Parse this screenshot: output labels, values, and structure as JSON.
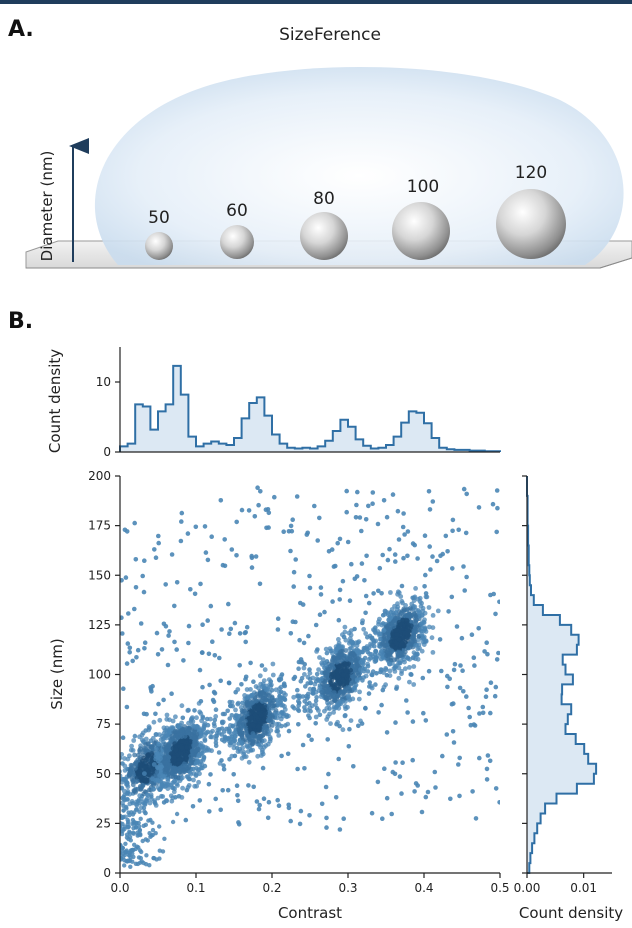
{
  "colors": {
    "header_bar": "#1f3d5c",
    "point": "#4a86b5",
    "density_dark": "#1d4e78",
    "hist_line": "#2f6fa5",
    "hist_fill": "#dce8f3",
    "droplet": "#dfeaf6",
    "arrow": "#1f3d5c"
  },
  "panel_a": {
    "letter": "A.",
    "title": "SizeFerence",
    "arrow_label": "Diameter (nm)",
    "sphere_labels": [
      "50",
      "60",
      "80",
      "100",
      "120"
    ]
  },
  "panel_b": {
    "letter": "B."
  },
  "chart_data": [
    {
      "type": "histogram",
      "ylabel": "Count density",
      "xlim": [
        0,
        0.5
      ],
      "ylim": [
        0,
        15
      ],
      "yticks": [
        0,
        10
      ],
      "bin_width": 0.01,
      "bins_start": 0,
      "values": [
        0.8,
        1.2,
        6.8,
        6.5,
        3.2,
        5.8,
        6.8,
        12.3,
        8.2,
        2.2,
        0.8,
        1.2,
        1.5,
        1.2,
        1.0,
        2.0,
        4.8,
        7.0,
        7.8,
        5.2,
        2.5,
        1.2,
        0.6,
        0.5,
        0.6,
        0.5,
        0.8,
        1.6,
        3.0,
        4.6,
        3.6,
        1.8,
        0.9,
        0.5,
        0.6,
        1.0,
        2.2,
        4.2,
        5.8,
        5.6,
        4.1,
        2.0,
        0.6,
        0.4,
        0.3,
        0.3,
        0.2,
        0.2,
        0.1,
        0.1
      ]
    },
    {
      "type": "scatter",
      "xlabel": "Contrast",
      "ylabel": "Size (nm)",
      "xlim": [
        0,
        0.5
      ],
      "ylim": [
        0,
        200
      ],
      "xticks": [
        "0.0",
        "0.1",
        "0.2",
        "0.3",
        "0.4",
        "0.5"
      ],
      "yticks": [
        "0",
        "25",
        "50",
        "75",
        "100",
        "125",
        "150",
        "175",
        "200"
      ],
      "clusters": [
        {
          "contrast": 0.035,
          "size": 53,
          "n": 380
        },
        {
          "contrast": 0.08,
          "size": 61,
          "n": 650
        },
        {
          "contrast": 0.18,
          "size": 78,
          "n": 520
        },
        {
          "contrast": 0.29,
          "size": 99,
          "n": 480
        },
        {
          "contrast": 0.37,
          "size": 120,
          "n": 560
        }
      ]
    },
    {
      "type": "histogram",
      "orientation": "horizontal",
      "xlabel": "Count density",
      "xlim": [
        0,
        0.015
      ],
      "xticks": [
        "0.00",
        "0.01"
      ],
      "ylim": [
        0,
        200
      ],
      "bin_width": 5,
      "bins_start": 0,
      "values": [
        0.0004,
        0.0006,
        0.0009,
        0.0013,
        0.0018,
        0.0024,
        0.0032,
        0.0052,
        0.0088,
        0.0118,
        0.0122,
        0.0108,
        0.0101,
        0.0086,
        0.0068,
        0.0072,
        0.0078,
        0.0061,
        0.0062,
        0.0081,
        0.0068,
        0.0063,
        0.0088,
        0.0091,
        0.0078,
        0.0058,
        0.0028,
        0.0012,
        0.0007,
        0.0005,
        0.0004,
        0.0003,
        0.0003,
        0.0002,
        0.0002,
        0.0001,
        0.0001,
        0.0001,
        0.0,
        0.0
      ]
    }
  ]
}
